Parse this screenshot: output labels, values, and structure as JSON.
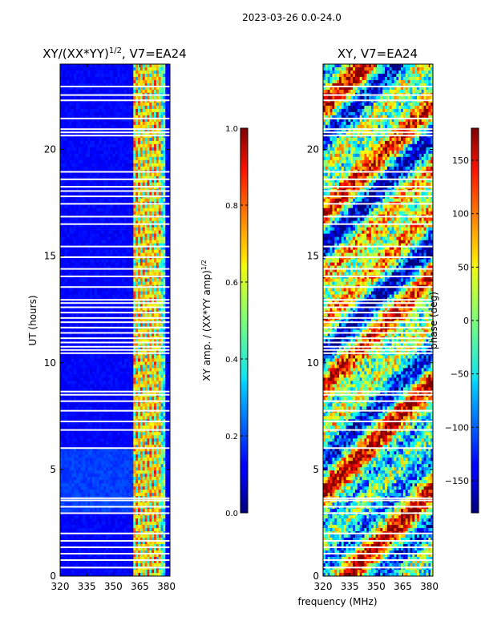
{
  "header": {
    "date_range": "2023-03-26 0.0-24.0"
  },
  "chart_data": [
    {
      "type": "heatmap",
      "title_main": "XY/(XX*YY)",
      "title_exp": "1/2",
      "title_suffix": ", V7=EA24",
      "ylabel": "UT (hours)",
      "xlim": [
        320,
        382
      ],
      "ylim": [
        0,
        24
      ],
      "xticks": [
        "320",
        "335",
        "350",
        "365",
        "380"
      ],
      "xtick_values": [
        320,
        335,
        350,
        365,
        380
      ],
      "yticks": [
        "0",
        "5",
        "10",
        "15",
        "20"
      ],
      "ytick_values": [
        0,
        5,
        10,
        15,
        20
      ],
      "colorbar": {
        "label_main": "XY amp. / (XX*YY amp)",
        "label_exp": "1/2",
        "min": 0.0,
        "max": 1.0,
        "ticks": [
          "0.0",
          "0.2",
          "0.4",
          "0.6",
          "0.8",
          "1.0"
        ],
        "tick_values": [
          0.0,
          0.2,
          0.4,
          0.6,
          0.8,
          1.0
        ]
      }
    },
    {
      "type": "heatmap",
      "title": "XY, V7=EA24",
      "xlabel": "frequency (MHz)",
      "xlim": [
        320,
        382
      ],
      "ylim": [
        0,
        24
      ],
      "xticks": [
        "320",
        "335",
        "350",
        "365",
        "380"
      ],
      "xtick_values": [
        320,
        335,
        350,
        365,
        380
      ],
      "yticks": [
        "0",
        "5",
        "10",
        "15",
        "20"
      ],
      "ytick_values": [
        0,
        5,
        10,
        15,
        20
      ],
      "colorbar": {
        "label": "phase (deg)",
        "min": -180,
        "max": 180,
        "ticks": [
          "−150",
          "−100",
          "−50",
          "0",
          "50",
          "100",
          "150"
        ],
        "tick_values": [
          -150,
          -100,
          -50,
          0,
          50,
          100,
          150
        ]
      }
    }
  ],
  "gaps_ut": [
    0.4,
    0.75,
    1.05,
    1.35,
    1.65,
    2.0,
    2.95,
    3.25,
    3.55,
    3.65,
    6.0,
    6.85,
    7.25,
    7.75,
    8.2,
    8.5,
    8.65,
    10.45,
    10.6,
    10.75,
    10.95,
    11.15,
    11.4,
    11.65,
    11.9,
    12.1,
    12.35,
    12.6,
    12.8,
    12.95,
    13.55,
    14.05,
    14.4,
    14.95,
    15.45,
    16.5,
    16.85,
    17.45,
    17.8,
    18.05,
    18.25,
    18.6,
    18.95,
    20.65,
    20.8,
    20.95,
    21.45,
    22.3,
    22.55,
    22.95
  ]
}
